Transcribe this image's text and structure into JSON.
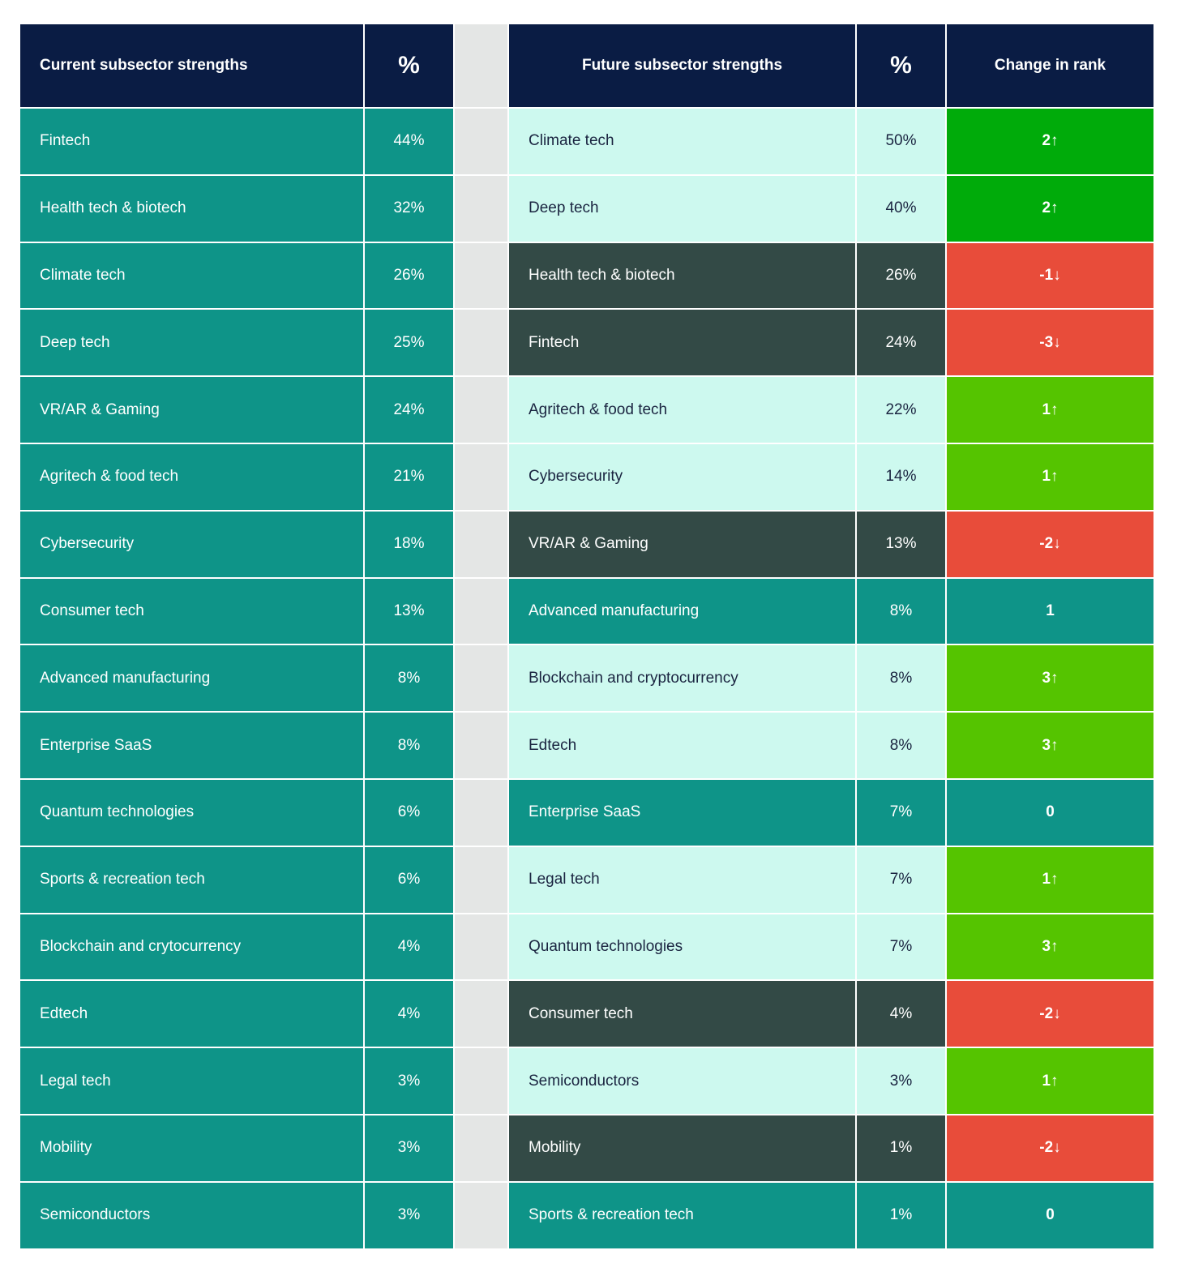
{
  "colors": {
    "header": "#0a1c44",
    "teal": "#0e9488",
    "light": "#cdf9ef",
    "dark": "#334a46",
    "strong_up": "#00ab0a",
    "up": "#55c400",
    "down": "#e84c3a",
    "gap": "#e4e6e5"
  },
  "chart_data": {
    "type": "table",
    "headers": {
      "current": "Current subsector strengths",
      "current_pct": "%",
      "future": "Future subsector strengths",
      "future_pct": "%",
      "change": "Change in rank"
    },
    "current": [
      {
        "name": "Fintech",
        "pct": "44%"
      },
      {
        "name": "Health tech & biotech",
        "pct": "32%"
      },
      {
        "name": "Climate tech",
        "pct": "26%"
      },
      {
        "name": "Deep tech",
        "pct": "25%"
      },
      {
        "name": "VR/AR & Gaming",
        "pct": "24%"
      },
      {
        "name": "Agritech & food tech",
        "pct": "21%"
      },
      {
        "name": "Cybersecurity",
        "pct": "18%"
      },
      {
        "name": "Consumer tech",
        "pct": "13%"
      },
      {
        "name": "Advanced manufacturing",
        "pct": "8%"
      },
      {
        "name": "Enterprise SaaS",
        "pct": "8%"
      },
      {
        "name": "Quantum technologies",
        "pct": "6%"
      },
      {
        "name": "Sports & recreation tech",
        "pct": "6%"
      },
      {
        "name": "Blockchain and crytocurrency",
        "pct": "4%"
      },
      {
        "name": "Edtech",
        "pct": "4%"
      },
      {
        "name": "Legal tech",
        "pct": "3%"
      },
      {
        "name": "Mobility",
        "pct": "3%"
      },
      {
        "name": "Semiconductors",
        "pct": "3%"
      }
    ],
    "future": [
      {
        "name": "Climate tech",
        "pct": "50%",
        "change": "2↑",
        "style": "light",
        "change_type": "up2"
      },
      {
        "name": "Deep tech",
        "pct": "40%",
        "change": "2↑",
        "style": "light",
        "change_type": "up2"
      },
      {
        "name": "Health tech & biotech",
        "pct": "26%",
        "change": "-1↓",
        "style": "dark",
        "change_type": "down"
      },
      {
        "name": "Fintech",
        "pct": "24%",
        "change": "-3↓",
        "style": "dark",
        "change_type": "down"
      },
      {
        "name": "Agritech & food tech",
        "pct": "22%",
        "change": "1↑",
        "style": "light",
        "change_type": "up"
      },
      {
        "name": "Cybersecurity",
        "pct": "14%",
        "change": "1↑",
        "style": "light",
        "change_type": "up"
      },
      {
        "name": "VR/AR & Gaming",
        "pct": "13%",
        "change": "-2↓",
        "style": "dark",
        "change_type": "down"
      },
      {
        "name": "Advanced manufacturing",
        "pct": "8%",
        "change": "1",
        "style": "teal",
        "change_type": "flat"
      },
      {
        "name": "Blockchain and cryptocurrency",
        "pct": "8%",
        "change": "3↑",
        "style": "light",
        "change_type": "up"
      },
      {
        "name": "Edtech",
        "pct": "8%",
        "change": "3↑",
        "style": "light",
        "change_type": "up"
      },
      {
        "name": "Enterprise SaaS",
        "pct": "7%",
        "change": "0",
        "style": "teal",
        "change_type": "flat"
      },
      {
        "name": "Legal tech",
        "pct": "7%",
        "change": "1↑",
        "style": "light",
        "change_type": "up"
      },
      {
        "name": "Quantum technologies",
        "pct": "7%",
        "change": "3↑",
        "style": "light",
        "change_type": "up"
      },
      {
        "name": "Consumer tech",
        "pct": "4%",
        "change": "-2↓",
        "style": "dark",
        "change_type": "down"
      },
      {
        "name": "Semiconductors",
        "pct": "3%",
        "change": "1↑",
        "style": "light",
        "change_type": "up"
      },
      {
        "name": "Mobility",
        "pct": "1%",
        "change": "-2↓",
        "style": "dark",
        "change_type": "down"
      },
      {
        "name": "Sports & recreation tech",
        "pct": "1%",
        "change": "0",
        "style": "teal",
        "change_type": "flat"
      }
    ]
  }
}
